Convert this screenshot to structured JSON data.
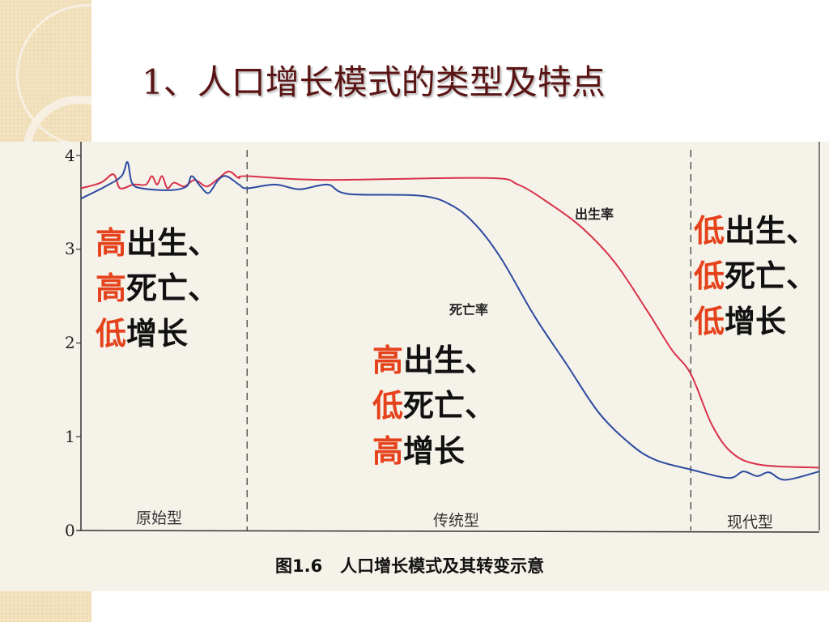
{
  "slide": {
    "title": "1、人口增长模式的类型及特点"
  },
  "chart_data": {
    "type": "line",
    "caption": "图1.6   人口增长模式及其转变示意",
    "ylim": [
      0,
      4
    ],
    "yticks": [
      "0",
      "1",
      "2",
      "3",
      "4"
    ],
    "xlim": [
      0,
      100
    ],
    "grid": false,
    "stages": [
      {
        "label": "原始型",
        "boundary_end": 22.5
      },
      {
        "label": "传统型",
        "boundary_end": 82.6
      },
      {
        "label": "现代型"
      }
    ],
    "series": [
      {
        "name": "出生率",
        "color": "#d9314a",
        "points": [
          [
            0,
            3.65
          ],
          [
            2.7,
            3.71
          ],
          [
            4.4,
            3.8
          ],
          [
            5.3,
            3.65
          ],
          [
            7.1,
            3.69
          ],
          [
            8.8,
            3.69
          ],
          [
            9.6,
            3.78
          ],
          [
            10.3,
            3.69
          ],
          [
            11.0,
            3.78
          ],
          [
            11.7,
            3.65
          ],
          [
            12.6,
            3.71
          ],
          [
            14.0,
            3.67
          ],
          [
            15.4,
            3.74
          ],
          [
            17.0,
            3.67
          ],
          [
            18.4,
            3.74
          ],
          [
            20.0,
            3.83
          ],
          [
            21.4,
            3.76
          ],
          [
            22.5,
            3.78
          ],
          [
            32.9,
            3.74
          ],
          [
            54.8,
            3.76
          ],
          [
            59.2,
            3.69
          ],
          [
            63.6,
            3.48
          ],
          [
            68.0,
            3.22
          ],
          [
            72.4,
            2.85
          ],
          [
            76.8,
            2.33
          ],
          [
            80.0,
            1.93
          ],
          [
            82.6,
            1.67
          ],
          [
            85.5,
            1.12
          ],
          [
            88.3,
            0.82
          ],
          [
            92.1,
            0.7
          ],
          [
            100,
            0.67
          ]
        ]
      },
      {
        "name": "死亡率",
        "color": "#2c4aa0",
        "points": [
          [
            0,
            3.54
          ],
          [
            3.3,
            3.67
          ],
          [
            5.5,
            3.78
          ],
          [
            6.3,
            3.93
          ],
          [
            6.9,
            3.71
          ],
          [
            8.2,
            3.65
          ],
          [
            12.1,
            3.63
          ],
          [
            14.3,
            3.67
          ],
          [
            15.0,
            3.78
          ],
          [
            16.2,
            3.67
          ],
          [
            17.3,
            3.6
          ],
          [
            18.6,
            3.74
          ],
          [
            19.7,
            3.78
          ],
          [
            21.4,
            3.69
          ],
          [
            22.5,
            3.65
          ],
          [
            26.3,
            3.69
          ],
          [
            29.6,
            3.64
          ],
          [
            33.4,
            3.69
          ],
          [
            36.2,
            3.59
          ],
          [
            46.1,
            3.57
          ],
          [
            50.4,
            3.46
          ],
          [
            53.7,
            3.24
          ],
          [
            57.0,
            2.89
          ],
          [
            61.4,
            2.29
          ],
          [
            65.8,
            1.77
          ],
          [
            70.2,
            1.25
          ],
          [
            74.6,
            0.91
          ],
          [
            77.9,
            0.75
          ],
          [
            82.6,
            0.65
          ],
          [
            87.7,
            0.56
          ],
          [
            89.7,
            0.63
          ],
          [
            91.6,
            0.58
          ],
          [
            93.2,
            0.62
          ],
          [
            95.4,
            0.54
          ],
          [
            100,
            0.63
          ]
        ]
      }
    ],
    "annotations": [
      {
        "lines": [
          {
            "accent": "高",
            "rest": "出生、"
          },
          {
            "accent": "高",
            "rest": "死亡、"
          },
          {
            "accent": "低",
            "rest": "增长"
          }
        ]
      },
      {
        "lines": [
          {
            "accent": "高",
            "rest": "出生、"
          },
          {
            "accent": "低",
            "rest": "死亡、"
          },
          {
            "accent": "高",
            "rest": "增长"
          }
        ]
      },
      {
        "lines": [
          {
            "accent": "低",
            "rest": "出生、"
          },
          {
            "accent": "低",
            "rest": "死亡、"
          },
          {
            "accent": "低",
            "rest": "增长"
          }
        ]
      }
    ],
    "accent_color": "#e5421c"
  }
}
